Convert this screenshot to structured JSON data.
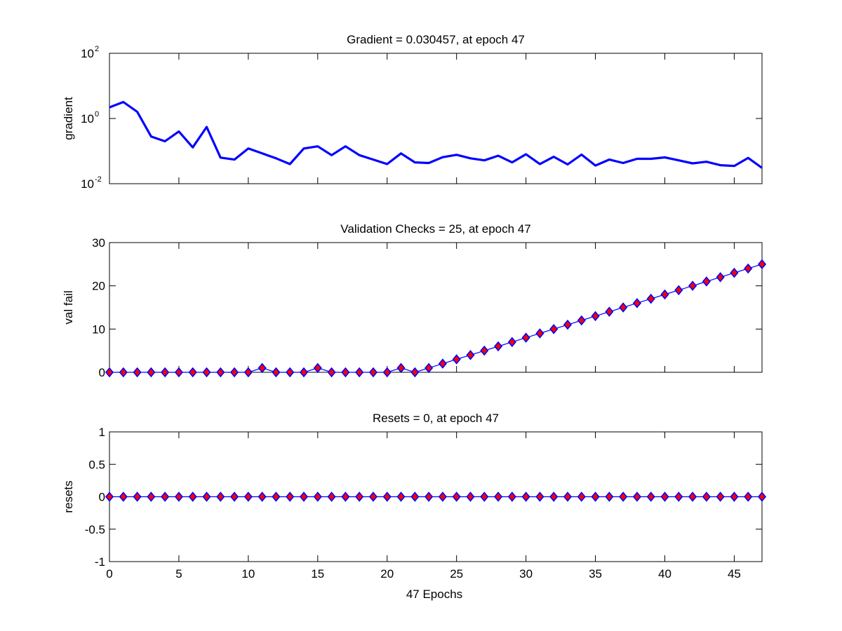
{
  "figure": {
    "xlabel": "47 Epochs"
  },
  "chart_data": [
    {
      "type": "line",
      "title": "Gradient = 0.030457, at epoch 47",
      "xlabel": "",
      "ylabel": "gradient",
      "xlim": [
        0,
        47
      ],
      "ylim": [
        0.01,
        100
      ],
      "yscale": "log",
      "ytick_values": [
        0.01,
        1,
        100
      ],
      "ytick_labels": [
        {
          "base": "10",
          "exp": "-2"
        },
        {
          "base": "10",
          "exp": "0"
        },
        {
          "base": "10",
          "exp": "2"
        }
      ],
      "grid": false,
      "colors": {
        "line": "#0000ff"
      },
      "x": [
        0,
        1,
        2,
        3,
        4,
        5,
        6,
        7,
        8,
        9,
        10,
        11,
        12,
        13,
        14,
        15,
        16,
        17,
        18,
        19,
        20,
        21,
        22,
        23,
        24,
        25,
        26,
        27,
        28,
        29,
        30,
        31,
        32,
        33,
        34,
        35,
        36,
        37,
        38,
        39,
        40,
        41,
        42,
        43,
        44,
        45,
        46,
        47
      ],
      "values": [
        2.2,
        3.2,
        1.6,
        0.28,
        0.2,
        0.4,
        0.13,
        0.55,
        0.063,
        0.055,
        0.12,
        0.085,
        0.06,
        0.04,
        0.12,
        0.14,
        0.075,
        0.14,
        0.075,
        0.055,
        0.04,
        0.085,
        0.045,
        0.043,
        0.065,
        0.077,
        0.06,
        0.052,
        0.072,
        0.045,
        0.08,
        0.04,
        0.067,
        0.039,
        0.078,
        0.036,
        0.055,
        0.043,
        0.058,
        0.058,
        0.064,
        0.052,
        0.042,
        0.047,
        0.037,
        0.035,
        0.062,
        0.030457
      ]
    },
    {
      "type": "scatter",
      "title": "Validation Checks = 25, at epoch 47",
      "xlabel": "",
      "ylabel": "val fail",
      "xlim": [
        0,
        47
      ],
      "ylim": [
        0,
        30
      ],
      "ytick_values": [
        0,
        10,
        20,
        30
      ],
      "ytick_labels": [
        "0",
        "10",
        "20",
        "30"
      ],
      "grid": false,
      "marker": "diamond",
      "colors": {
        "line": "#0000ff",
        "marker_face": "#ff0000",
        "marker_edge": "#0000ff"
      },
      "x": [
        0,
        1,
        2,
        3,
        4,
        5,
        6,
        7,
        8,
        9,
        10,
        11,
        12,
        13,
        14,
        15,
        16,
        17,
        18,
        19,
        20,
        21,
        22,
        23,
        24,
        25,
        26,
        27,
        28,
        29,
        30,
        31,
        32,
        33,
        34,
        35,
        36,
        37,
        38,
        39,
        40,
        41,
        42,
        43,
        44,
        45,
        46,
        47
      ],
      "values": [
        0,
        0,
        0,
        0,
        0,
        0,
        0,
        0,
        0,
        0,
        0,
        1,
        0,
        0,
        0,
        1,
        0,
        0,
        0,
        0,
        0,
        1,
        0,
        1,
        2,
        3,
        4,
        5,
        6,
        7,
        8,
        9,
        10,
        11,
        12,
        13,
        14,
        15,
        16,
        17,
        18,
        19,
        20,
        21,
        22,
        23,
        24,
        25
      ]
    },
    {
      "type": "scatter",
      "title": "Resets = 0, at epoch 47",
      "xlabel": "47 Epochs",
      "ylabel": "resets",
      "xlim": [
        0,
        47
      ],
      "ylim": [
        -1,
        1
      ],
      "ytick_values": [
        -1,
        -0.5,
        0,
        0.5,
        1
      ],
      "ytick_labels": [
        "-1",
        "-0.5",
        "0",
        "0.5",
        "1"
      ],
      "xtick_values": [
        0,
        5,
        10,
        15,
        20,
        25,
        30,
        35,
        40,
        45
      ],
      "xtick_labels": [
        "0",
        "5",
        "10",
        "15",
        "20",
        "25",
        "30",
        "35",
        "40",
        "45"
      ],
      "grid": false,
      "marker": "diamond",
      "colors": {
        "line": "#0000ff",
        "marker_face": "#ff0000",
        "marker_edge": "#0000ff"
      },
      "x": [
        0,
        1,
        2,
        3,
        4,
        5,
        6,
        7,
        8,
        9,
        10,
        11,
        12,
        13,
        14,
        15,
        16,
        17,
        18,
        19,
        20,
        21,
        22,
        23,
        24,
        25,
        26,
        27,
        28,
        29,
        30,
        31,
        32,
        33,
        34,
        35,
        36,
        37,
        38,
        39,
        40,
        41,
        42,
        43,
        44,
        45,
        46,
        47
      ],
      "values": [
        0,
        0,
        0,
        0,
        0,
        0,
        0,
        0,
        0,
        0,
        0,
        0,
        0,
        0,
        0,
        0,
        0,
        0,
        0,
        0,
        0,
        0,
        0,
        0,
        0,
        0,
        0,
        0,
        0,
        0,
        0,
        0,
        0,
        0,
        0,
        0,
        0,
        0,
        0,
        0,
        0,
        0,
        0,
        0,
        0,
        0,
        0,
        0
      ]
    }
  ]
}
